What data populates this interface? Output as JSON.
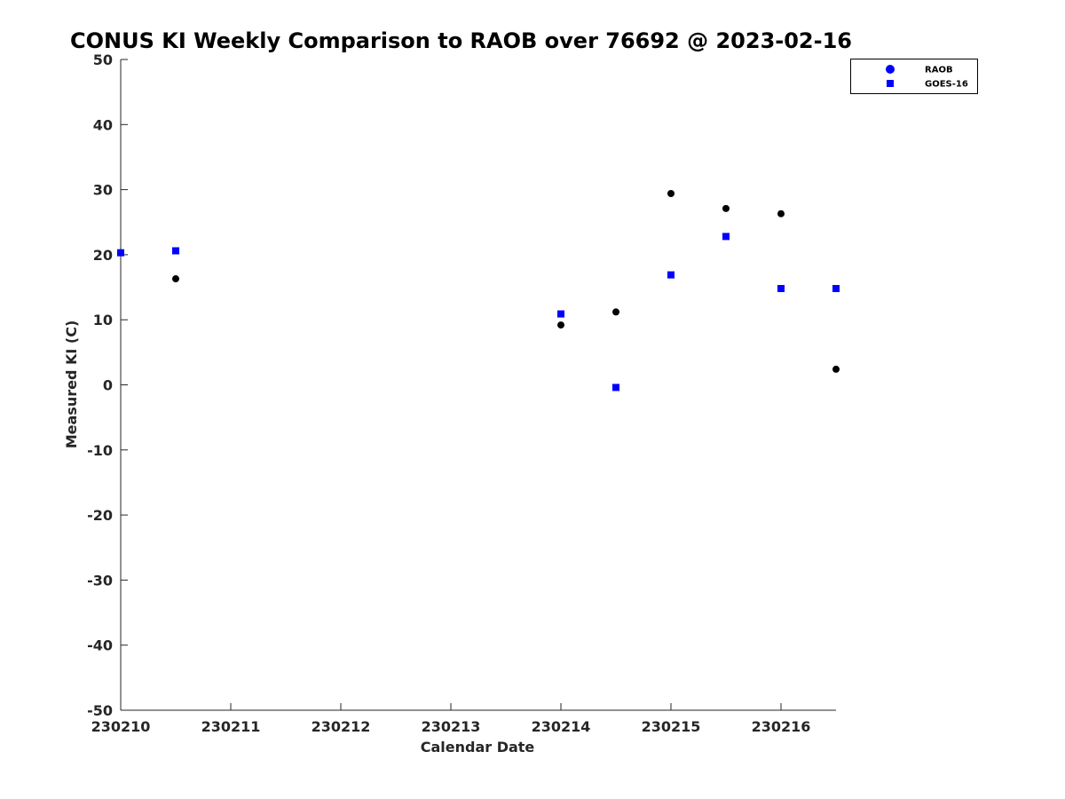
{
  "chart_data": {
    "type": "scatter",
    "title": "CONUS KI Weekly Comparison to RAOB over 76692 @ 2023-02-16",
    "xlabel": "Calendar Date",
    "ylabel": "Measured KI (C)",
    "xlim": [
      "2023-02-10T00:00",
      "2023-02-16T12:00"
    ],
    "ylim": [
      -50,
      50
    ],
    "x_ticks": [
      {
        "x": "2023-02-10T00:00",
        "label": "230210"
      },
      {
        "x": "2023-02-11T00:00",
        "label": "230211"
      },
      {
        "x": "2023-02-12T00:00",
        "label": "230212"
      },
      {
        "x": "2023-02-13T00:00",
        "label": "230213"
      },
      {
        "x": "2023-02-14T00:00",
        "label": "230214"
      },
      {
        "x": "2023-02-15T00:00",
        "label": "230215"
      },
      {
        "x": "2023-02-16T00:00",
        "label": "230216"
      }
    ],
    "y_ticks": [
      -50,
      -40,
      -30,
      -20,
      -10,
      0,
      10,
      20,
      30,
      40,
      50
    ],
    "grid": false,
    "legend_position": "top-right",
    "series": [
      {
        "name": "RAOB",
        "marker": "circle",
        "color": "#000000",
        "legend_color": "#0000ff",
        "points": [
          {
            "x": "2023-02-10T12:00",
            "y": 16.3
          },
          {
            "x": "2023-02-14T00:00",
            "y": 9.2
          },
          {
            "x": "2023-02-14T12:00",
            "y": 11.2
          },
          {
            "x": "2023-02-15T00:00",
            "y": 29.4
          },
          {
            "x": "2023-02-15T12:00",
            "y": 27.1
          },
          {
            "x": "2023-02-16T00:00",
            "y": 26.3
          },
          {
            "x": "2023-02-16T12:00",
            "y": 2.4
          }
        ]
      },
      {
        "name": "GOES-16",
        "marker": "square",
        "color": "#0000ff",
        "legend_color": "#0000ff",
        "points": [
          {
            "x": "2023-02-10T00:00",
            "y": 20.3
          },
          {
            "x": "2023-02-10T12:00",
            "y": 20.6
          },
          {
            "x": "2023-02-14T00:00",
            "y": 10.9
          },
          {
            "x": "2023-02-14T12:00",
            "y": -0.4
          },
          {
            "x": "2023-02-15T00:00",
            "y": 16.9
          },
          {
            "x": "2023-02-15T12:00",
            "y": 22.8
          },
          {
            "x": "2023-02-16T00:00",
            "y": 14.8
          },
          {
            "x": "2023-02-16T12:00",
            "y": 14.8
          }
        ]
      }
    ]
  }
}
